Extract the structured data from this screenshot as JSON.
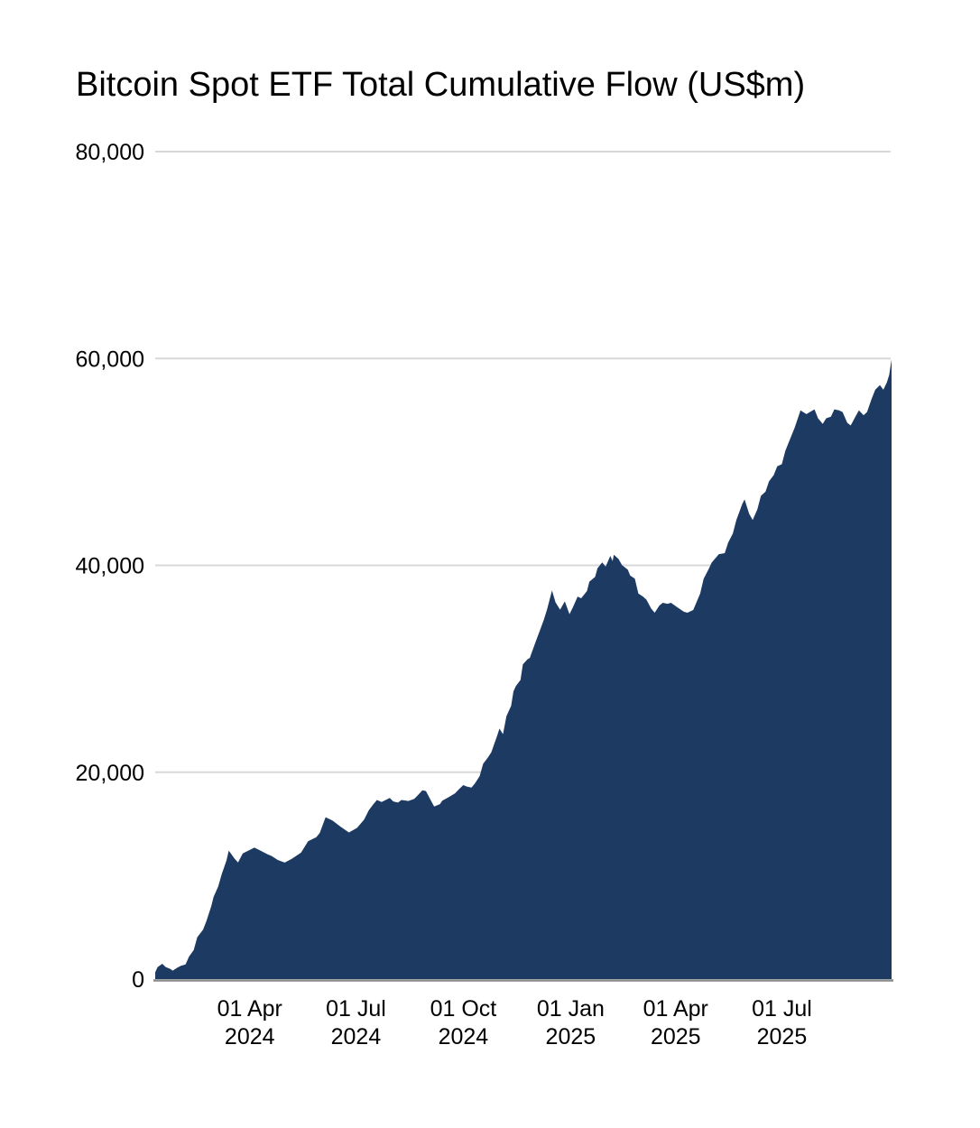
{
  "chart_data": {
    "type": "area",
    "title": "Bitcoin Spot ETF Total Cumulative Flow (US$m)",
    "xlabel": "",
    "ylabel": "",
    "ylim": [
      0,
      80000
    ],
    "grid": true,
    "legend": "none",
    "colors": {
      "area_fill": "#1d3a63",
      "gridline": "#d8d8d8",
      "axis_line": "#8a8a8a",
      "text": "#000000",
      "background": "#ffffff"
    },
    "y_ticks": [
      {
        "value": 0,
        "label": "0"
      },
      {
        "value": 20000,
        "label": "20,000"
      },
      {
        "value": 40000,
        "label": "40,000"
      },
      {
        "value": 60000,
        "label": "60,000"
      },
      {
        "value": 80000,
        "label": "80,000"
      }
    ],
    "x_ticks": [
      {
        "date": "2024-04-01",
        "line1": "01 Apr",
        "line2": "2024"
      },
      {
        "date": "2024-07-01",
        "line1": "01 Jul",
        "line2": "2024"
      },
      {
        "date": "2024-10-01",
        "line1": "01 Oct",
        "line2": "2024"
      },
      {
        "date": "2025-01-01",
        "line1": "01 Jan",
        "line2": "2025"
      },
      {
        "date": "2025-04-01",
        "line1": "01 Apr",
        "line2": "2025"
      },
      {
        "date": "2025-07-01",
        "line1": "01 Jul",
        "line2": "2025"
      }
    ],
    "series": [
      {
        "name": "Total Cumulative Flow (US$m)",
        "points": [
          [
            "2024-01-11",
            650
          ],
          [
            "2024-01-13",
            1150
          ],
          [
            "2024-01-17",
            1480
          ],
          [
            "2024-01-20",
            1170
          ],
          [
            "2024-01-24",
            980
          ],
          [
            "2024-01-26",
            820
          ],
          [
            "2024-01-30",
            1120
          ],
          [
            "2024-02-02",
            1280
          ],
          [
            "2024-02-06",
            1420
          ],
          [
            "2024-02-09",
            2180
          ],
          [
            "2024-02-13",
            2820
          ],
          [
            "2024-02-16",
            4050
          ],
          [
            "2024-02-21",
            4780
          ],
          [
            "2024-02-24",
            5650
          ],
          [
            "2024-02-28",
            7050
          ],
          [
            "2024-03-01",
            7950
          ],
          [
            "2024-03-05",
            8950
          ],
          [
            "2024-03-08",
            10150
          ],
          [
            "2024-03-12",
            11450
          ],
          [
            "2024-03-14",
            12420
          ],
          [
            "2024-03-19",
            11650
          ],
          [
            "2024-03-22",
            11280
          ],
          [
            "2024-03-26",
            12150
          ],
          [
            "2024-04-01",
            12480
          ],
          [
            "2024-04-05",
            12720
          ],
          [
            "2024-04-10",
            12430
          ],
          [
            "2024-04-16",
            12080
          ],
          [
            "2024-04-20",
            11880
          ],
          [
            "2024-04-25",
            11520
          ],
          [
            "2024-05-01",
            11260
          ],
          [
            "2024-05-07",
            11620
          ],
          [
            "2024-05-15",
            12220
          ],
          [
            "2024-05-21",
            13320
          ],
          [
            "2024-05-28",
            13720
          ],
          [
            "2024-05-31",
            14120
          ],
          [
            "2024-06-05",
            15650
          ],
          [
            "2024-06-11",
            15320
          ],
          [
            "2024-06-18",
            14720
          ],
          [
            "2024-06-25",
            14180
          ],
          [
            "2024-07-02",
            14620
          ],
          [
            "2024-07-08",
            15420
          ],
          [
            "2024-07-12",
            16320
          ],
          [
            "2024-07-16",
            16920
          ],
          [
            "2024-07-19",
            17320
          ],
          [
            "2024-07-23",
            17120
          ],
          [
            "2024-07-30",
            17520
          ],
          [
            "2024-08-02",
            17180
          ],
          [
            "2024-08-06",
            17060
          ],
          [
            "2024-08-09",
            17320
          ],
          [
            "2024-08-15",
            17220
          ],
          [
            "2024-08-20",
            17420
          ],
          [
            "2024-08-23",
            17780
          ],
          [
            "2024-08-27",
            18260
          ],
          [
            "2024-08-30",
            18180
          ],
          [
            "2024-09-03",
            17320
          ],
          [
            "2024-09-06",
            16680
          ],
          [
            "2024-09-11",
            16920
          ],
          [
            "2024-09-13",
            17260
          ],
          [
            "2024-09-18",
            17560
          ],
          [
            "2024-09-24",
            17960
          ],
          [
            "2024-09-27",
            18320
          ],
          [
            "2024-10-01",
            18760
          ],
          [
            "2024-10-04",
            18620
          ],
          [
            "2024-10-08",
            18520
          ],
          [
            "2024-10-11",
            18920
          ],
          [
            "2024-10-15",
            19620
          ],
          [
            "2024-10-18",
            20820
          ],
          [
            "2024-10-22",
            21420
          ],
          [
            "2024-10-25",
            21920
          ],
          [
            "2024-10-30",
            23520
          ],
          [
            "2024-11-01",
            24220
          ],
          [
            "2024-11-04",
            23680
          ],
          [
            "2024-11-07",
            25420
          ],
          [
            "2024-11-11",
            26420
          ],
          [
            "2024-11-13",
            27820
          ],
          [
            "2024-11-15",
            28320
          ],
          [
            "2024-11-19",
            28920
          ],
          [
            "2024-11-21",
            30420
          ],
          [
            "2024-11-25",
            30920
          ],
          [
            "2024-11-27",
            31050
          ],
          [
            "2024-12-02",
            32620
          ],
          [
            "2024-12-05",
            33520
          ],
          [
            "2024-12-09",
            34720
          ],
          [
            "2024-12-12",
            35820
          ],
          [
            "2024-12-16",
            37580
          ],
          [
            "2024-12-19",
            36420
          ],
          [
            "2024-12-23",
            35720
          ],
          [
            "2024-12-27",
            36520
          ],
          [
            "2024-12-31",
            35280
          ],
          [
            "2025-01-03",
            35980
          ],
          [
            "2025-01-07",
            36980
          ],
          [
            "2025-01-10",
            36820
          ],
          [
            "2025-01-15",
            37520
          ],
          [
            "2025-01-17",
            38420
          ],
          [
            "2025-01-22",
            38880
          ],
          [
            "2025-01-24",
            39720
          ],
          [
            "2025-01-28",
            40280
          ],
          [
            "2025-01-31",
            39880
          ],
          [
            "2025-02-04",
            40920
          ],
          [
            "2025-02-06",
            40420
          ],
          [
            "2025-02-07",
            41020
          ],
          [
            "2025-02-11",
            40620
          ],
          [
            "2025-02-14",
            40020
          ],
          [
            "2025-02-19",
            39580
          ],
          [
            "2025-02-21",
            39020
          ],
          [
            "2025-02-25",
            38720
          ],
          [
            "2025-02-28",
            37280
          ],
          [
            "2025-03-04",
            36980
          ],
          [
            "2025-03-07",
            36680
          ],
          [
            "2025-03-11",
            35820
          ],
          [
            "2025-03-14",
            35420
          ],
          [
            "2025-03-18",
            36120
          ],
          [
            "2025-03-21",
            36380
          ],
          [
            "2025-03-25",
            36280
          ],
          [
            "2025-03-28",
            36380
          ],
          [
            "2025-04-02",
            35980
          ],
          [
            "2025-04-08",
            35520
          ],
          [
            "2025-04-11",
            35420
          ],
          [
            "2025-04-16",
            35680
          ],
          [
            "2025-04-22",
            37280
          ],
          [
            "2025-04-25",
            38720
          ],
          [
            "2025-04-29",
            39580
          ],
          [
            "2025-05-02",
            40280
          ],
          [
            "2025-05-08",
            41080
          ],
          [
            "2025-05-13",
            41180
          ],
          [
            "2025-05-16",
            42220
          ],
          [
            "2025-05-20",
            43080
          ],
          [
            "2025-05-23",
            44380
          ],
          [
            "2025-05-28",
            45920
          ],
          [
            "2025-05-30",
            46380
          ],
          [
            "2025-06-03",
            44980
          ],
          [
            "2025-06-06",
            44380
          ],
          [
            "2025-06-10",
            45420
          ],
          [
            "2025-06-13",
            46720
          ],
          [
            "2025-06-17",
            47120
          ],
          [
            "2025-06-20",
            48120
          ],
          [
            "2025-06-24",
            48720
          ],
          [
            "2025-06-27",
            49580
          ],
          [
            "2025-07-01",
            49780
          ],
          [
            "2025-07-04",
            51080
          ],
          [
            "2025-07-09",
            52480
          ],
          [
            "2025-07-12",
            53320
          ],
          [
            "2025-07-17",
            54980
          ],
          [
            "2025-07-22",
            54620
          ],
          [
            "2025-07-25",
            54820
          ],
          [
            "2025-07-29",
            55080
          ],
          [
            "2025-08-01",
            54220
          ],
          [
            "2025-08-05",
            53680
          ],
          [
            "2025-08-08",
            54220
          ],
          [
            "2025-08-12",
            54380
          ],
          [
            "2025-08-15",
            55080
          ],
          [
            "2025-08-19",
            54980
          ],
          [
            "2025-08-22",
            54820
          ],
          [
            "2025-08-26",
            53780
          ],
          [
            "2025-08-29",
            53520
          ],
          [
            "2025-09-02",
            54380
          ],
          [
            "2025-09-05",
            54980
          ],
          [
            "2025-09-09",
            54520
          ],
          [
            "2025-09-12",
            54820
          ],
          [
            "2025-09-16",
            56120
          ],
          [
            "2025-09-19",
            56980
          ],
          [
            "2025-09-23",
            57420
          ],
          [
            "2025-09-26",
            56980
          ],
          [
            "2025-09-29",
            57680
          ],
          [
            "2025-10-01",
            58420
          ],
          [
            "2025-10-03",
            59920
          ]
        ]
      }
    ]
  }
}
